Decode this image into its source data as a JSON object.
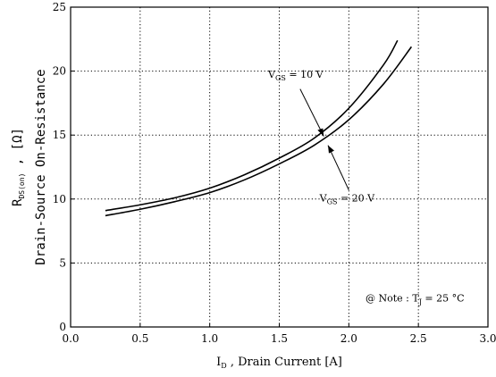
{
  "chart_data": {
    "type": "line",
    "x_ticks": [
      "0.0",
      "0.5",
      "1.0",
      "1.5",
      "2.0",
      "2.5",
      "3.0"
    ],
    "y_ticks": [
      "0",
      "5",
      "10",
      "15",
      "20",
      "25"
    ],
    "xlim": [
      0,
      3
    ],
    "ylim": [
      0,
      25
    ],
    "grid": true,
    "grid_style": "dotted",
    "xlabel": {
      "main": "I",
      "sub": "D",
      "rest": " , Drain Current   [A]"
    },
    "ylabel": {
      "line1_main": "R",
      "line1_sub": "DS(on)",
      "line1_rest": " ,   [Ω]",
      "line2": "Drain-Source On-Resistance"
    },
    "series": [
      {
        "name": "VGS = 10 V",
        "label_main": "V",
        "label_sub": "GS",
        "label_rest": " = 10 V",
        "x": [
          0.25,
          0.5,
          0.75,
          1.0,
          1.25,
          1.5,
          1.75,
          2.0,
          2.25,
          2.35
        ],
        "y": [
          9.1,
          9.55,
          10.1,
          10.85,
          11.9,
          13.2,
          14.75,
          17.1,
          20.5,
          22.4
        ]
      },
      {
        "name": "VGS = 20 V",
        "label_main": "V",
        "label_sub": "GS",
        "label_rest": " = 20 V",
        "x": [
          0.25,
          0.5,
          0.75,
          1.0,
          1.25,
          1.5,
          1.75,
          2.0,
          2.25,
          2.45
        ],
        "y": [
          8.7,
          9.2,
          9.8,
          10.5,
          11.5,
          12.75,
          14.2,
          16.2,
          19.0,
          21.9
        ]
      }
    ],
    "note": {
      "prefix": "@ Note : T",
      "sub": "J",
      "rest": " = 25 °C"
    },
    "colors": {
      "line": "#000000",
      "grid": "#000000",
      "background": "#ffffff"
    }
  }
}
